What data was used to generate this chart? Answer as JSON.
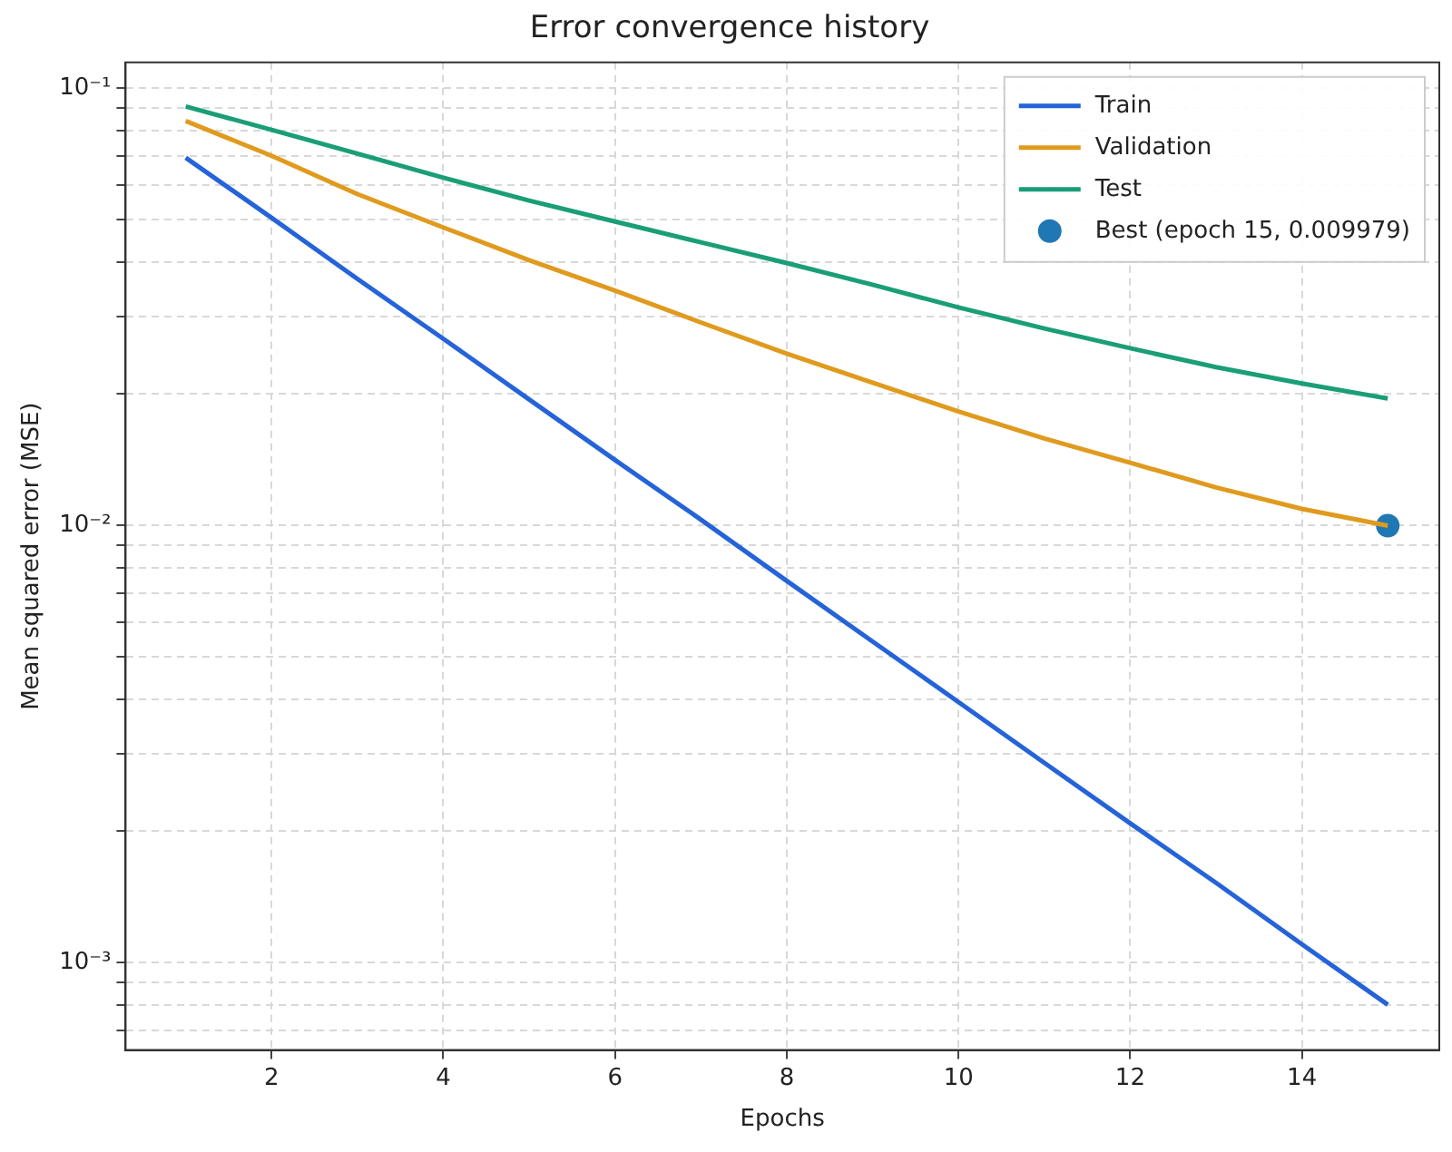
{
  "chart_data": {
    "type": "line",
    "title": "Error convergence history",
    "xlabel": "Epochs",
    "ylabel": "Mean squared error (MSE)",
    "x": [
      1,
      2,
      3,
      4,
      5,
      6,
      7,
      8,
      9,
      10,
      11,
      12,
      13,
      14,
      15
    ],
    "series": [
      {
        "name": "Train",
        "color": "#2563d9",
        "values": [
          0.0693,
          0.0505,
          0.0366,
          0.0267,
          0.0194,
          0.0141,
          0.0103,
          0.00746,
          0.00542,
          0.00394,
          0.00286,
          0.00208,
          0.00152,
          0.0011,
          0.0008
        ]
      },
      {
        "name": "Validation",
        "color": "#e09a1e",
        "values": [
          0.0841,
          0.07,
          0.0572,
          0.048,
          0.0404,
          0.0344,
          0.0291,
          0.0247,
          0.0212,
          0.0182,
          0.0158,
          0.0139,
          0.0122,
          0.0109,
          0.009979
        ]
      },
      {
        "name": "Test",
        "color": "#1a9e77",
        "values": [
          0.0908,
          0.0803,
          0.0708,
          0.0624,
          0.0553,
          0.0495,
          0.0444,
          0.0398,
          0.0355,
          0.0315,
          0.0282,
          0.0254,
          0.023,
          0.0211,
          0.0195
        ]
      },
      {
        "name": "Best (epoch 15, 0.009979)",
        "type": "scatter",
        "marker": "circle",
        "color": "#1f77b4",
        "x": [
          15
        ],
        "values": [
          0.009979
        ]
      }
    ],
    "log": "y",
    "grid": true,
    "legend": "top right",
    "line_style": "solid",
    "xlim": [
      0.3,
      15.6
    ],
    "xticks": [
      2,
      4,
      6,
      8,
      10,
      12,
      14
    ],
    "ylim": [
      0.00063,
      0.1145
    ],
    "yticks": [
      {
        "value": 0.0007,
        "label": null
      },
      {
        "value": 0.0008,
        "label": null
      },
      {
        "value": 0.0009,
        "label": null
      },
      {
        "value": 0.001,
        "label": "10⁻³"
      },
      {
        "value": 0.002,
        "label": null
      },
      {
        "value": 0.003,
        "label": null
      },
      {
        "value": 0.004,
        "label": null
      },
      {
        "value": 0.005,
        "label": null
      },
      {
        "value": 0.006,
        "label": null
      },
      {
        "value": 0.007,
        "label": null
      },
      {
        "value": 0.008,
        "label": null
      },
      {
        "value": 0.009,
        "label": null
      },
      {
        "value": 0.01,
        "label": "10⁻²"
      },
      {
        "value": 0.02,
        "label": null
      },
      {
        "value": 0.03,
        "label": null
      },
      {
        "value": 0.04,
        "label": null
      },
      {
        "value": 0.05,
        "label": null
      },
      {
        "value": 0.06,
        "label": null
      },
      {
        "value": 0.07,
        "label": null
      },
      {
        "value": 0.08,
        "label": null
      },
      {
        "value": 0.09,
        "label": null
      },
      {
        "value": 0.1,
        "label": "10⁻¹"
      }
    ]
  }
}
